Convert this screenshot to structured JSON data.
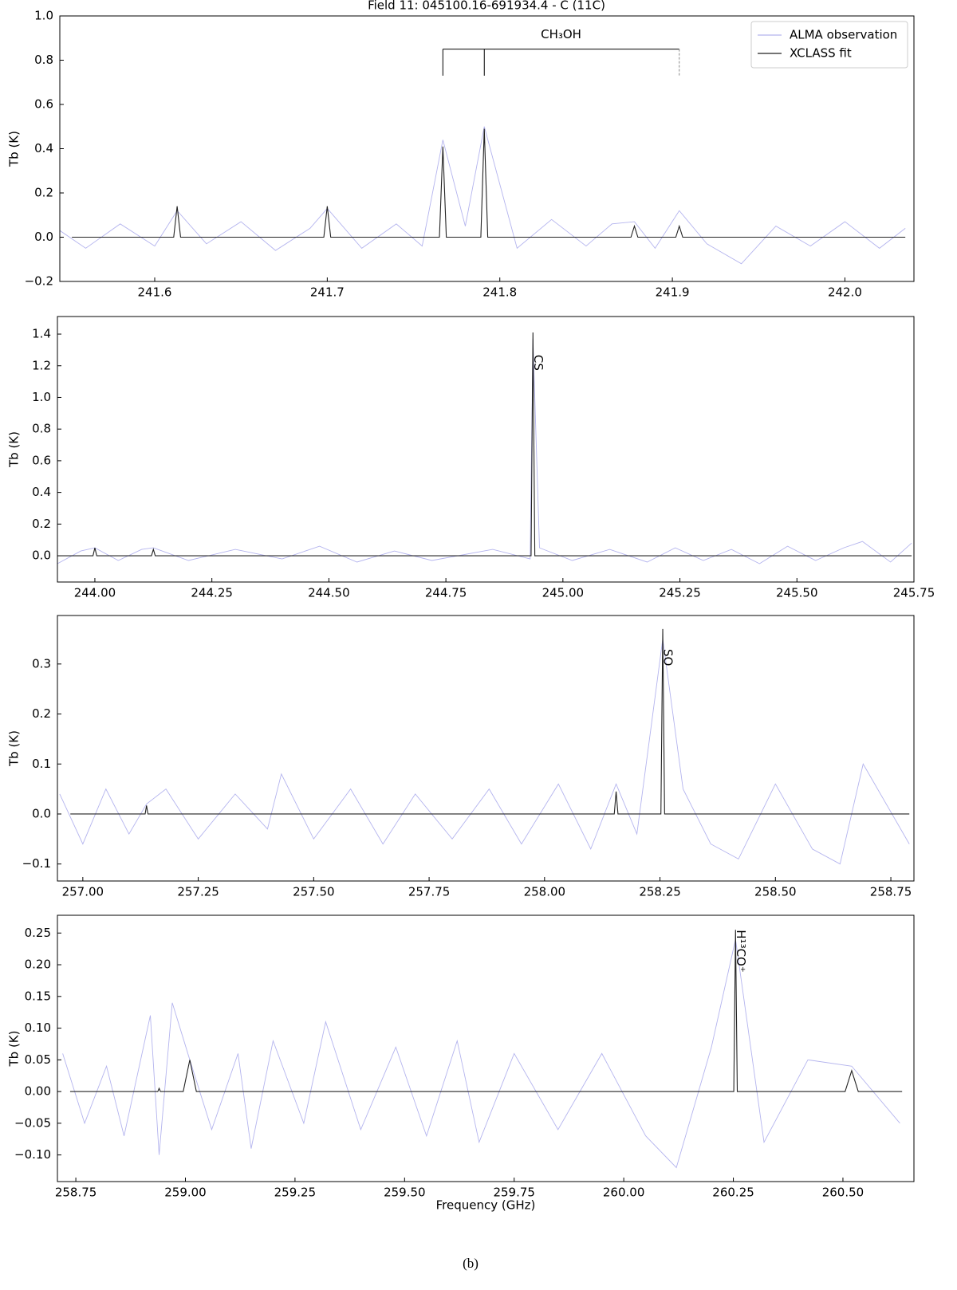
{
  "chart_data": [
    {
      "type": "line",
      "title": "Field 11: 045100.16-691934.4 - C (11C)",
      "ylabel": "Tb (K)",
      "legend": "upper right",
      "xlim": [
        241.545,
        242.04
      ],
      "ylim": [
        -0.2,
        1.0
      ],
      "xticks": [
        241.6,
        241.7,
        241.8,
        241.9,
        {
          "value": 242.0,
          "label": "242.0"
        }
      ],
      "yticks": [
        {
          "value": -0.2,
          "label": "−0.2"
        },
        {
          "value": 0,
          "label": "0.0"
        },
        0.2,
        0.4,
        0.6,
        0.8,
        {
          "value": 1.0,
          "label": "1.0"
        }
      ],
      "series": [
        {
          "name": "ALMA observation",
          "color": "#b4b4ee",
          "x": [
            241.545,
            241.56,
            241.58,
            241.6,
            241.613,
            241.63,
            241.65,
            241.67,
            241.69,
            241.7,
            241.72,
            241.74,
            241.755,
            241.767,
            241.78,
            241.791,
            241.81,
            241.83,
            241.85,
            241.865,
            241.878,
            241.89,
            241.904,
            241.92,
            241.94,
            241.96,
            241.98,
            242.0,
            242.02,
            242.035
          ],
          "values": [
            0.03,
            -0.05,
            0.06,
            -0.04,
            0.12,
            -0.03,
            0.07,
            -0.06,
            0.04,
            0.13,
            -0.05,
            0.06,
            -0.04,
            0.44,
            0.05,
            0.5,
            -0.05,
            0.08,
            -0.04,
            0.06,
            0.07,
            -0.05,
            0.12,
            -0.03,
            -0.12,
            0.05,
            -0.04,
            0.07,
            -0.05,
            0.04
          ]
        },
        {
          "name": "XCLASS fit",
          "color": "#222222",
          "x": [
            241.552,
            241.611,
            241.613,
            241.615,
            241.698,
            241.7,
            241.702,
            241.765,
            241.767,
            241.769,
            241.789,
            241.791,
            241.793,
            241.876,
            241.878,
            241.88,
            241.902,
            241.904,
            241.906,
            242.035
          ],
          "values": [
            0,
            0,
            0.14,
            0,
            0,
            0.14,
            0,
            0,
            0.41,
            0,
            0,
            0.49,
            0,
            0,
            0.05,
            0,
            0,
            0.05,
            0,
            0
          ]
        }
      ],
      "line_ids": {
        "label": "CH₃OH",
        "x": [
          241.767,
          241.791,
          241.904
        ],
        "ylow": 0.73,
        "yhigh": 0.85,
        "dashed": [
          false,
          false,
          true
        ]
      }
    },
    {
      "type": "line",
      "ylabel": "Tb (K)",
      "xlim": [
        243.92,
        245.75
      ],
      "ylim": [
        -0.166,
        1.511
      ],
      "xticks": [
        {
          "value": 244.0,
          "label": "244.00"
        },
        244.25,
        {
          "value": 244.5,
          "label": "244.50"
        },
        244.75,
        {
          "value": 245.0,
          "label": "245.00"
        },
        245.25,
        {
          "value": 245.5,
          "label": "245.50"
        },
        245.75
      ],
      "yticks": [
        {
          "value": 0,
          "label": "0.0"
        },
        0.2,
        0.4,
        0.6,
        0.8,
        {
          "value": 1.0,
          "label": "1.0"
        },
        1.2,
        1.4
      ],
      "series": [
        {
          "color": "#b4b4ee",
          "x": [
            243.92,
            243.97,
            244.0,
            244.05,
            244.1,
            244.125,
            244.2,
            244.3,
            244.4,
            244.48,
            244.56,
            244.64,
            244.72,
            244.85,
            244.93,
            244.936,
            244.95,
            245.02,
            245.1,
            245.18,
            245.24,
            245.3,
            245.36,
            245.42,
            245.48,
            245.54,
            245.6,
            245.64,
            245.7,
            245.745
          ],
          "values": [
            -0.05,
            0.03,
            0.05,
            -0.03,
            0.04,
            0.05,
            -0.03,
            0.04,
            -0.02,
            0.06,
            -0.04,
            0.03,
            -0.03,
            0.04,
            -0.02,
            1.37,
            0.05,
            -0.03,
            0.04,
            -0.04,
            0.05,
            -0.03,
            0.04,
            -0.05,
            0.06,
            -0.03,
            0.05,
            0.09,
            -0.04,
            0.08
          ]
        },
        {
          "color": "#222222",
          "x": [
            243.92,
            243.996,
            244.0,
            244.004,
            244.121,
            244.125,
            244.129,
            244.932,
            244.936,
            244.94,
            245.745
          ],
          "values": [
            0,
            0,
            0.05,
            0,
            0,
            0.04,
            0,
            0,
            1.41,
            0,
            0
          ]
        }
      ],
      "annotations": [
        {
          "text": "CS",
          "x": 244.936,
          "y": 1.27
        }
      ]
    },
    {
      "type": "line",
      "ylabel": "Tb (K)",
      "xlim": [
        256.945,
        258.8
      ],
      "ylim": [
        -0.134,
        0.397
      ],
      "xticks": [
        {
          "value": 257.0,
          "label": "257.00"
        },
        257.25,
        {
          "value": 257.5,
          "label": "257.50"
        },
        257.75,
        {
          "value": 258.0,
          "label": "258.00"
        },
        258.25,
        {
          "value": 258.5,
          "label": "258.50"
        },
        258.75
      ],
      "yticks": [
        {
          "value": -0.1,
          "label": "−0.1"
        },
        {
          "value": 0,
          "label": "0.0"
        },
        0.1,
        0.2,
        0.3
      ],
      "series": [
        {
          "color": "#b4b4ee",
          "x": [
            256.95,
            257.0,
            257.05,
            257.1,
            257.138,
            257.18,
            257.25,
            257.33,
            257.4,
            257.43,
            257.5,
            257.58,
            257.65,
            257.72,
            257.8,
            257.88,
            257.95,
            258.03,
            258.1,
            258.155,
            258.2,
            258.256,
            258.3,
            258.36,
            258.42,
            258.5,
            258.58,
            258.64,
            258.69,
            258.79
          ],
          "values": [
            0.04,
            -0.06,
            0.05,
            -0.04,
            0.02,
            0.05,
            -0.05,
            0.04,
            -0.03,
            0.08,
            -0.05,
            0.05,
            -0.06,
            0.04,
            -0.05,
            0.05,
            -0.06,
            0.06,
            -0.07,
            0.06,
            -0.04,
            0.35,
            0.05,
            -0.06,
            -0.09,
            0.06,
            -0.07,
            -0.1,
            0.1,
            -0.06
          ]
        },
        {
          "color": "#222222",
          "x": [
            256.973,
            257.135,
            257.138,
            257.141,
            258.151,
            258.155,
            258.159,
            258.252,
            258.256,
            258.26,
            258.79
          ],
          "values": [
            0,
            0,
            0.017,
            0,
            0,
            0.045,
            0,
            0,
            0.37,
            0,
            0
          ]
        }
      ],
      "annotations": [
        {
          "text": "SO",
          "x": 258.256,
          "y": 0.33
        }
      ]
    },
    {
      "type": "line",
      "ylabel": "Tb (K)",
      "xlabel": "Frequency (GHz)",
      "xlim": [
        258.708,
        260.662
      ],
      "ylim": [
        -0.142,
        0.278
      ],
      "xticks": [
        258.75,
        {
          "value": 259.0,
          "label": "259.00"
        },
        259.25,
        {
          "value": 259.5,
          "label": "259.50"
        },
        259.75,
        {
          "value": 260.0,
          "label": "260.00"
        },
        260.25,
        {
          "value": 260.5,
          "label": "260.50"
        }
      ],
      "yticks": [
        {
          "value": -0.1,
          "label": "−0.10"
        },
        {
          "value": -0.05,
          "label": "−0.05"
        },
        {
          "value": 0,
          "label": "0.00"
        },
        0.05,
        {
          "value": 0.1,
          "label": "0.10"
        },
        0.15,
        {
          "value": 0.2,
          "label": "0.20"
        },
        0.25
      ],
      "series": [
        {
          "color": "#b4b4ee",
          "x": [
            258.72,
            258.77,
            258.82,
            258.86,
            258.92,
            258.94,
            258.97,
            259.01,
            259.06,
            259.12,
            259.15,
            259.2,
            259.27,
            259.32,
            259.4,
            259.48,
            259.55,
            259.62,
            259.67,
            259.75,
            259.85,
            259.95,
            260.05,
            260.12,
            260.2,
            260.255,
            260.32,
            260.42,
            260.52,
            260.63
          ],
          "values": [
            0.06,
            -0.05,
            0.04,
            -0.07,
            0.12,
            -0.1,
            0.14,
            0.05,
            -0.06,
            0.06,
            -0.09,
            0.08,
            -0.05,
            0.11,
            -0.06,
            0.07,
            -0.07,
            0.08,
            -0.08,
            0.06,
            -0.06,
            0.06,
            -0.07,
            -0.12,
            0.07,
            0.24,
            -0.08,
            0.05,
            0.04,
            -0.05
          ]
        },
        {
          "color": "#222222",
          "x": [
            258.737,
            258.937,
            258.94,
            258.943,
            258.995,
            259.01,
            259.025,
            260.251,
            260.255,
            260.259,
            260.505,
            260.52,
            260.535,
            260.635
          ],
          "values": [
            0,
            0,
            0.005,
            0,
            0,
            0.05,
            0,
            0,
            0.255,
            0,
            0,
            0.033,
            0,
            0
          ]
        }
      ],
      "annotations": [
        {
          "text": "H¹³CO⁺",
          "x": 260.255,
          "y": 0.255
        }
      ]
    }
  ],
  "caption": "(b)"
}
